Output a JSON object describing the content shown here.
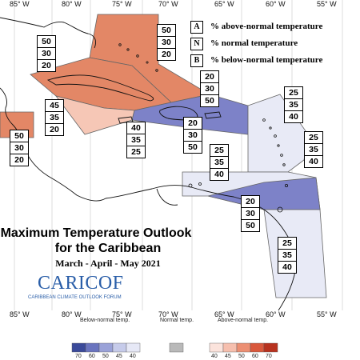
{
  "longitudes": [
    "85° W",
    "80° W",
    "75° W",
    "70° W",
    "65° W",
    "60° W",
    "55° W"
  ],
  "legend": [
    {
      "key": "A",
      "text": "% above-normal temperature"
    },
    {
      "key": "N",
      "text": "% normal temperature"
    },
    {
      "key": "B",
      "text": "% below-normal temperature"
    }
  ],
  "title": {
    "line1": "Maximum Temperature Outlook",
    "line2": "for the Caribbean",
    "period": "March - April - May 2021"
  },
  "logo": {
    "name": "CARICOF",
    "subtitle": "CARIBBEAN CLIMATE OUTLOOK FORUM"
  },
  "regions": [
    {
      "name": "bahamas",
      "values": [
        "50",
        "30",
        "20"
      ]
    },
    {
      "name": "cuba",
      "values": [
        "50",
        "30",
        "20"
      ]
    },
    {
      "name": "turks-caicos",
      "values": [
        "20",
        "30",
        "50"
      ]
    },
    {
      "name": "jamaica",
      "values": [
        "45",
        "35",
        "20"
      ]
    },
    {
      "name": "central-america",
      "values": [
        "50",
        "30",
        "20"
      ]
    },
    {
      "name": "cayman-south",
      "values": [
        "40",
        "35",
        "25"
      ]
    },
    {
      "name": "hispaniola",
      "values": [
        "20",
        "30",
        "50"
      ]
    },
    {
      "name": "leeward-islands",
      "values": [
        "25",
        "35",
        "40"
      ]
    },
    {
      "name": "windward-islands",
      "values": [
        "25",
        "35",
        "40"
      ]
    },
    {
      "name": "abc-islands",
      "values": [
        "25",
        "35",
        "40"
      ]
    },
    {
      "name": "trinidad",
      "values": [
        "20",
        "30",
        "50"
      ]
    },
    {
      "name": "guianas",
      "values": [
        "25",
        "35",
        "40"
      ]
    }
  ],
  "colorbar": {
    "below_label": "Below-normal temp.",
    "normal_label": "Normal temp.",
    "above_label": "Above-normal temp.",
    "below_colors": [
      "#3b4a9a",
      "#6a74bf",
      "#9aa2d8",
      "#c6cbea",
      "#e6e8f6"
    ],
    "normal_color": "#b9b9b9",
    "above_colors": [
      "#fbe3dc",
      "#f6bfae",
      "#ec8f73",
      "#d9583c",
      "#b8321f"
    ],
    "below_ticks": [
      "70",
      "60",
      "50",
      "45",
      "40"
    ],
    "above_ticks": [
      "40",
      "45",
      "50",
      "60",
      "70"
    ]
  }
}
